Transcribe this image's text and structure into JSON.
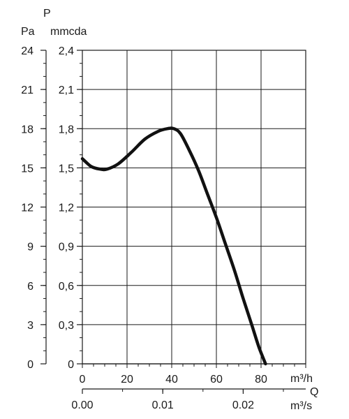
{
  "chart_data": {
    "type": "line",
    "title": "",
    "y_symbol": "P",
    "x_symbol": "Q",
    "y_axis_pa": {
      "unit": "Pa",
      "ticks": [
        "0",
        "3",
        "6",
        "9",
        "12",
        "15",
        "18",
        "21",
        "24"
      ],
      "range": [
        0,
        24
      ]
    },
    "y_axis_mmcda": {
      "unit": "mmcda",
      "ticks": [
        "0",
        "0,3",
        "0,6",
        "0,9",
        "1,2",
        "1,5",
        "1,8",
        "2,1",
        "2,4"
      ],
      "range": [
        0,
        2.4
      ]
    },
    "x_axis_m3h": {
      "unit": "m³/h",
      "ticks": [
        "0",
        "20",
        "40",
        "60",
        "80"
      ],
      "range": [
        0,
        100
      ]
    },
    "x_axis_m3s": {
      "unit": "m³/s",
      "ticks": [
        "0.00",
        "0.01",
        "0.02"
      ],
      "values": [
        0,
        0.01,
        0.02
      ]
    },
    "grid": true,
    "series": [
      {
        "x_unit": "m³/h",
        "y_unit": "mmcda",
        "points": [
          [
            0,
            1.57
          ],
          [
            4,
            1.51
          ],
          [
            8,
            1.49
          ],
          [
            11,
            1.49
          ],
          [
            16,
            1.53
          ],
          [
            22,
            1.62
          ],
          [
            28,
            1.72
          ],
          [
            34,
            1.78
          ],
          [
            38,
            1.8
          ],
          [
            41,
            1.8
          ],
          [
            44,
            1.76
          ],
          [
            48,
            1.63
          ],
          [
            52,
            1.48
          ],
          [
            56,
            1.3
          ],
          [
            60,
            1.12
          ],
          [
            64,
            0.92
          ],
          [
            68,
            0.72
          ],
          [
            72,
            0.5
          ],
          [
            76,
            0.29
          ],
          [
            79,
            0.13
          ],
          [
            82,
            0.0
          ]
        ]
      }
    ]
  }
}
